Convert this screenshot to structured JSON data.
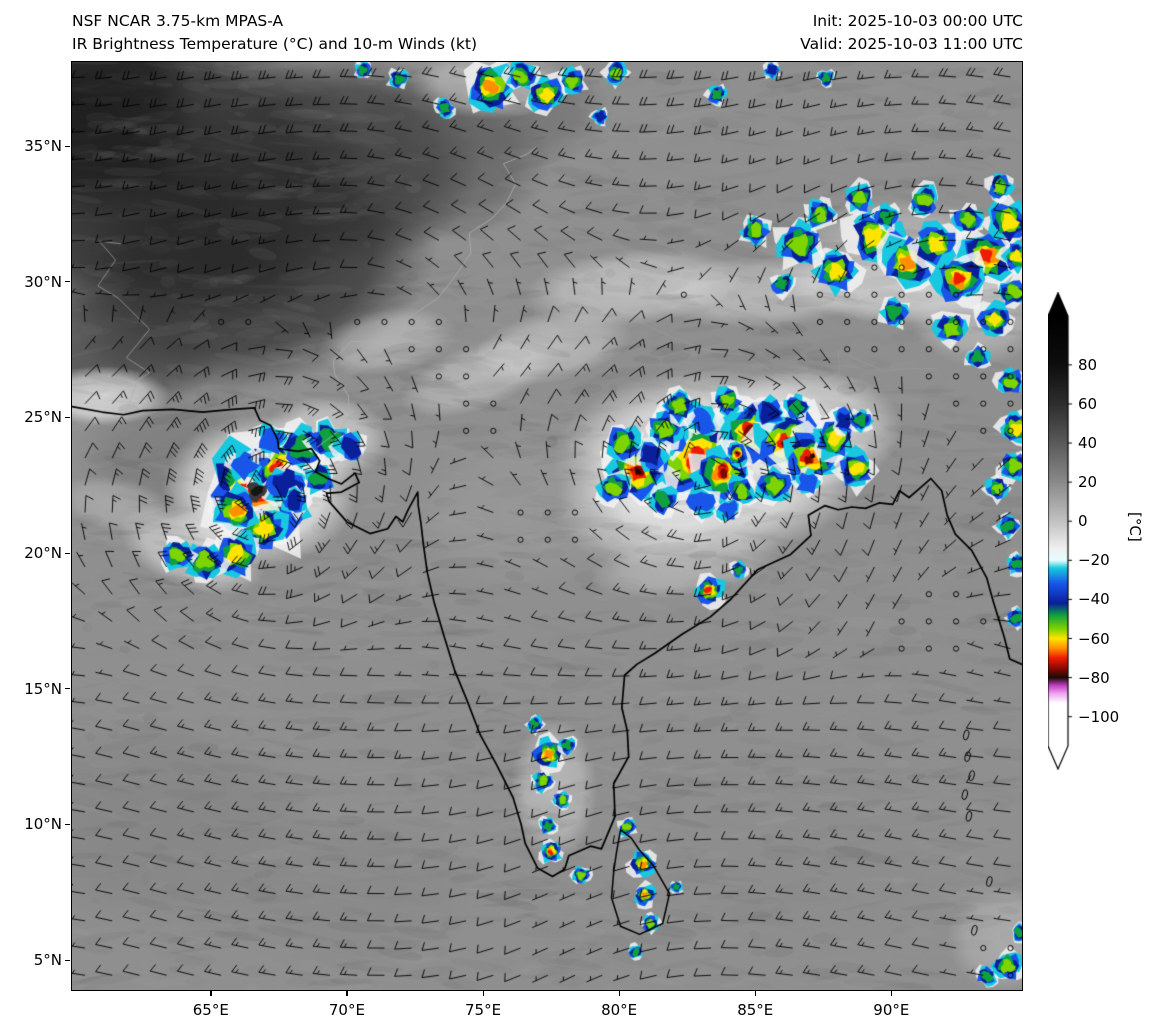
{
  "header": {
    "model": "NSF NCAR 3.75-km MPAS-A",
    "product": "IR Brightness Temperature (°C) and 10-m Winds (kt)",
    "init": "Init: 2025-10-03 00:00 UTC",
    "valid": "Valid: 2025-10-03 11:00 UTC"
  },
  "chart_data": {
    "type": "heatmap",
    "title": "IR Brightness Temperature (°C) and 10-m Winds (kt)",
    "subtitle": "NSF NCAR 3.75-km MPAS-A",
    "init_time": "2025-10-03 00:00 UTC",
    "valid_time": "2025-10-03 11:00 UTC",
    "lon_range": [
      59.9,
      94.8
    ],
    "lat_range": [
      3.9,
      38.1
    ],
    "x_ticks": [
      {
        "label": "65°E",
        "lon": 65
      },
      {
        "label": "70°E",
        "lon": 70
      },
      {
        "label": "75°E",
        "lon": 75
      },
      {
        "label": "80°E",
        "lon": 80
      },
      {
        "label": "85°E",
        "lon": 85
      },
      {
        "label": "90°E",
        "lon": 90
      }
    ],
    "y_ticks": [
      {
        "label": "35°N",
        "lat": 35
      },
      {
        "label": "30°N",
        "lat": 30
      },
      {
        "label": "25°N",
        "lat": 25
      },
      {
        "label": "20°N",
        "lat": 20
      },
      {
        "label": "15°N",
        "lat": 15
      },
      {
        "label": "10°N",
        "lat": 10
      },
      {
        "label": "5°N",
        "lat": 5
      }
    ],
    "colorbar": {
      "label": "[°C]",
      "units": "°C",
      "extend": "both",
      "bar_range": [
        105,
        -115
      ],
      "ticks": [
        {
          "label": "80",
          "value": 80
        },
        {
          "label": "60",
          "value": 60
        },
        {
          "label": "40",
          "value": 40
        },
        {
          "label": "20",
          "value": 20
        },
        {
          "label": "0",
          "value": 0
        },
        {
          "label": "−20",
          "value": -20
        },
        {
          "label": "−40",
          "value": -40
        },
        {
          "label": "−60",
          "value": -60
        },
        {
          "label": "−80",
          "value": -80
        },
        {
          "label": "−100",
          "value": -100
        }
      ],
      "stops": [
        [
          105,
          "#000000"
        ],
        [
          80,
          "#0e0e0e"
        ],
        [
          60,
          "#2e2e2e"
        ],
        [
          40,
          "#5a5a5a"
        ],
        [
          20,
          "#8a8a8a"
        ],
        [
          0,
          "#c2c2c2"
        ],
        [
          -14,
          "#f0f0f0"
        ],
        [
          -20,
          "#e6fdff"
        ],
        [
          -24,
          "#18c8e0"
        ],
        [
          -32,
          "#1855e8"
        ],
        [
          -42,
          "#0a1f9a"
        ],
        [
          -48,
          "#0fa040"
        ],
        [
          -55,
          "#7ed400"
        ],
        [
          -60,
          "#ffe400"
        ],
        [
          -65,
          "#ff9000"
        ],
        [
          -70,
          "#ee1c00"
        ],
        [
          -76,
          "#7c0800"
        ],
        [
          -80,
          "#1a0a04"
        ],
        [
          -84,
          "#c03ec0"
        ],
        [
          -88,
          "#f0a0f0"
        ],
        [
          -93,
          "#ffffff"
        ],
        [
          -115,
          "#ffffff"
        ]
      ]
    },
    "wind_barbs": {
      "units": "kt",
      "grid_spacing_deg": 1.0,
      "color": "#000000",
      "calm_circle_threshold_kt": 2.5
    },
    "vortices": [
      {
        "lon": 66.8,
        "lat": 22.3,
        "max_wind_kt": 35,
        "radius_deg": 1.8
      },
      {
        "lon": 83.2,
        "lat": 23.4,
        "max_wind_kt": 24,
        "radius_deg": 2.5
      }
    ],
    "calm_zones": [
      [
        89.5,
        28.6,
        4.5,
        2.2
      ],
      [
        77.5,
        21.0,
        2.2,
        2.0
      ],
      [
        94.2,
        5.3,
        2.0,
        1.6
      ],
      [
        94.3,
        25.6,
        1.5,
        1.2
      ]
    ],
    "brightness_patches": [
      [
        60.5,
        36.5,
        4,
        4,
        0,
        "#181818",
        0.9
      ],
      [
        63,
        34,
        8,
        6,
        0,
        "#1e1e1e",
        0.92
      ],
      [
        66.5,
        30.5,
        7,
        4.5,
        -15,
        "#262626",
        0.85
      ],
      [
        61.5,
        27.5,
        4,
        2.5,
        0,
        "#3a3a3a",
        0.7
      ],
      [
        70,
        34.5,
        5,
        4,
        0,
        "#2f2f2f",
        0.8
      ],
      [
        73.5,
        34.5,
        4,
        3,
        0,
        "#484848",
        0.55
      ],
      [
        75.8,
        36.3,
        4,
        2.2,
        0,
        "#5e5e5e",
        0.5
      ],
      [
        64,
        23.5,
        4,
        2.5,
        0,
        "#6f6f6f",
        0.5
      ],
      [
        61,
        25.8,
        2.5,
        1.1,
        0,
        "#eeeeee",
        0.8
      ],
      [
        61.5,
        21.8,
        2.2,
        1.0,
        10,
        "#c9c9c9",
        0.45
      ],
      [
        71.5,
        27.8,
        2.6,
        1.2,
        -10,
        "#d4d4d4",
        0.5
      ],
      [
        74.8,
        26.5,
        3,
        1.2,
        -20,
        "#dcdcdc",
        0.5
      ],
      [
        77.5,
        27.6,
        3,
        1.3,
        -12,
        "#e2e2e2",
        0.5
      ],
      [
        80.5,
        29.8,
        4,
        1.4,
        -5,
        "#e6e6e6",
        0.55
      ],
      [
        85,
        29.6,
        4,
        1.3,
        0,
        "#e2e2e2",
        0.5
      ],
      [
        89.5,
        29.9,
        4,
        1.4,
        5,
        "#e6e6e6",
        0.55
      ],
      [
        93,
        30.3,
        3,
        1.5,
        10,
        "#dddddd",
        0.5
      ],
      [
        66.8,
        22.3,
        3.6,
        2.8,
        0,
        "#f5f5f5",
        0.88
      ],
      [
        64.3,
        20.1,
        2.8,
        1.4,
        20,
        "#ececec",
        0.6
      ],
      [
        69.2,
        24.2,
        2.4,
        1.6,
        0,
        "#ececec",
        0.6
      ],
      [
        83.3,
        23.3,
        5.8,
        3.5,
        0,
        "#f4f4f4",
        0.88
      ],
      [
        86.8,
        24.6,
        3.6,
        2.3,
        0,
        "#f0f0f0",
        0.7
      ],
      [
        80.8,
        21.6,
        3.2,
        2.1,
        0,
        "#ebebeb",
        0.6
      ],
      [
        82.5,
        19.6,
        3.6,
        1.2,
        -8,
        "#dddddd",
        0.45
      ],
      [
        77.6,
        11.3,
        1.6,
        2.6,
        0,
        "#e4e4e4",
        0.5
      ],
      [
        90.5,
        30.8,
        4.5,
        2.4,
        0,
        "#d8d8d8",
        0.5
      ],
      [
        93.2,
        28.9,
        2.6,
        2.0,
        0,
        "#dadada",
        0.5
      ],
      [
        94.2,
        5.8,
        2.2,
        2.0,
        0,
        "#c8c8c8",
        0.5
      ],
      [
        76.2,
        21.5,
        4,
        3,
        0,
        "#a0a0a0",
        0.5
      ],
      [
        75.3,
        37.3,
        3,
        1.3,
        0,
        "#e0e0e0",
        0.55
      ],
      [
        63,
        10,
        6,
        4,
        0,
        "#7e7e7e",
        0.5
      ],
      [
        70,
        7.5,
        5,
        3,
        0,
        "#848484",
        0.45
      ],
      [
        87,
        9,
        6,
        4,
        0,
        "#8a8a8a",
        0.4
      ]
    ],
    "convective_cells": [
      [
        66.7,
        22.3,
        1.45,
        1.0
      ],
      [
        67.5,
        23.1,
        0.85,
        0.8
      ],
      [
        65.9,
        21.6,
        0.7,
        0.68
      ],
      [
        66.9,
        20.9,
        0.75,
        0.58
      ],
      [
        65.9,
        19.95,
        0.75,
        0.52
      ],
      [
        64.8,
        19.7,
        0.65,
        0.48
      ],
      [
        63.8,
        19.95,
        0.55,
        0.42
      ],
      [
        68.3,
        23.9,
        0.75,
        0.4
      ],
      [
        69.3,
        24.15,
        0.7,
        0.35
      ],
      [
        70.1,
        23.9,
        0.55,
        0.3
      ],
      [
        69.0,
        22.75,
        0.55,
        0.34
      ],
      [
        68.1,
        21.9,
        0.5,
        0.3
      ],
      [
        67.8,
        22.5,
        0.8,
        0.22
      ],
      [
        66.2,
        23.2,
        0.6,
        0.2
      ],
      [
        67.2,
        24.2,
        0.6,
        0.2
      ],
      [
        82.8,
        23.5,
        1.3,
        1.0
      ],
      [
        83.75,
        22.95,
        0.8,
        0.85
      ],
      [
        80.7,
        23.0,
        0.9,
        0.88
      ],
      [
        80.15,
        24.05,
        0.6,
        0.5
      ],
      [
        79.8,
        22.4,
        0.55,
        0.45
      ],
      [
        81.7,
        24.6,
        0.6,
        0.5
      ],
      [
        82.2,
        25.4,
        0.55,
        0.44
      ],
      [
        84.0,
        25.6,
        0.5,
        0.42
      ],
      [
        84.85,
        24.45,
        0.95,
        0.9
      ],
      [
        86.2,
        24.05,
        0.95,
        0.95
      ],
      [
        87.0,
        23.5,
        0.8,
        0.88
      ],
      [
        87.9,
        24.2,
        0.65,
        0.6
      ],
      [
        88.7,
        23.1,
        0.6,
        0.55
      ],
      [
        85.7,
        22.5,
        0.6,
        0.5
      ],
      [
        84.5,
        22.3,
        0.5,
        0.45
      ],
      [
        81.6,
        21.95,
        0.5,
        0.4
      ],
      [
        84.35,
        23.65,
        0.32,
        1.0
      ],
      [
        86.5,
        25.4,
        0.45,
        0.4
      ],
      [
        88.9,
        24.9,
        0.4,
        0.38
      ],
      [
        83.3,
        18.6,
        0.45,
        0.7
      ],
      [
        84.4,
        19.4,
        0.3,
        0.35
      ],
      [
        82.0,
        24.3,
        0.7,
        0.2
      ],
      [
        83.1,
        24.9,
        0.6,
        0.2
      ],
      [
        85.5,
        25.2,
        0.6,
        0.22
      ],
      [
        81.2,
        23.6,
        0.6,
        0.22
      ],
      [
        83.0,
        21.9,
        0.6,
        0.2
      ],
      [
        86.9,
        22.6,
        0.5,
        0.2
      ],
      [
        88.3,
        24.9,
        0.5,
        0.22
      ],
      [
        84.0,
        21.6,
        0.45,
        0.2
      ],
      [
        86.6,
        31.4,
        0.75,
        0.5
      ],
      [
        88.0,
        30.4,
        0.7,
        0.55
      ],
      [
        89.4,
        31.7,
        0.85,
        0.6
      ],
      [
        90.6,
        30.7,
        0.8,
        0.68
      ],
      [
        91.6,
        31.4,
        0.7,
        0.6
      ],
      [
        92.5,
        30.1,
        0.75,
        0.72
      ],
      [
        93.5,
        30.9,
        0.85,
        0.78
      ],
      [
        94.3,
        32.2,
        0.7,
        0.6
      ],
      [
        94.6,
        30.9,
        0.5,
        0.55
      ],
      [
        90.1,
        28.9,
        0.5,
        0.4
      ],
      [
        92.2,
        28.3,
        0.55,
        0.5
      ],
      [
        93.8,
        28.6,
        0.55,
        0.55
      ],
      [
        94.5,
        29.6,
        0.5,
        0.5
      ],
      [
        85.0,
        31.9,
        0.5,
        0.42
      ],
      [
        87.4,
        32.5,
        0.5,
        0.48
      ],
      [
        88.8,
        33.1,
        0.5,
        0.45
      ],
      [
        91.2,
        33.0,
        0.5,
        0.5
      ],
      [
        92.8,
        32.3,
        0.5,
        0.5
      ],
      [
        89.8,
        32.4,
        0.45,
        0.4
      ],
      [
        86.0,
        29.9,
        0.4,
        0.35
      ],
      [
        93.2,
        27.2,
        0.4,
        0.4
      ],
      [
        94.4,
        26.3,
        0.45,
        0.5
      ],
      [
        94.6,
        24.6,
        0.55,
        0.55
      ],
      [
        94.5,
        23.2,
        0.5,
        0.5
      ],
      [
        93.9,
        22.4,
        0.4,
        0.45
      ],
      [
        94.3,
        21.0,
        0.4,
        0.4
      ],
      [
        94.6,
        19.6,
        0.35,
        0.4
      ],
      [
        94.6,
        17.6,
        0.35,
        0.38
      ],
      [
        94.0,
        33.5,
        0.45,
        0.42
      ],
      [
        75.3,
        37.2,
        0.75,
        0.68
      ],
      [
        76.4,
        37.6,
        0.5,
        0.5
      ],
      [
        77.3,
        36.9,
        0.6,
        0.55
      ],
      [
        78.3,
        37.4,
        0.45,
        0.45
      ],
      [
        79.9,
        37.7,
        0.4,
        0.48
      ],
      [
        73.6,
        36.4,
        0.35,
        0.35
      ],
      [
        71.9,
        37.5,
        0.35,
        0.35
      ],
      [
        79.3,
        36.1,
        0.3,
        0.3
      ],
      [
        83.6,
        36.9,
        0.35,
        0.35
      ],
      [
        87.6,
        37.5,
        0.3,
        0.35
      ],
      [
        85.6,
        37.8,
        0.3,
        0.3
      ],
      [
        70.6,
        37.8,
        0.3,
        0.35
      ],
      [
        77.4,
        12.6,
        0.5,
        0.62
      ],
      [
        78.1,
        12.9,
        0.3,
        0.4
      ],
      [
        76.9,
        13.7,
        0.3,
        0.32
      ],
      [
        77.2,
        11.6,
        0.35,
        0.5
      ],
      [
        77.9,
        10.9,
        0.3,
        0.42
      ],
      [
        77.4,
        9.95,
        0.3,
        0.4
      ],
      [
        77.5,
        9.0,
        0.33,
        0.72
      ],
      [
        78.6,
        8.15,
        0.3,
        0.5
      ],
      [
        80.3,
        9.9,
        0.3,
        0.5
      ],
      [
        80.85,
        8.55,
        0.4,
        0.68
      ],
      [
        80.95,
        7.4,
        0.35,
        0.62
      ],
      [
        81.15,
        6.35,
        0.3,
        0.5
      ],
      [
        80.6,
        5.3,
        0.25,
        0.4
      ],
      [
        82.1,
        7.7,
        0.22,
        0.35
      ],
      [
        94.25,
        4.8,
        0.5,
        0.5
      ],
      [
        93.5,
        4.4,
        0.35,
        0.4
      ],
      [
        94.7,
        6.0,
        0.3,
        0.35
      ]
    ]
  }
}
